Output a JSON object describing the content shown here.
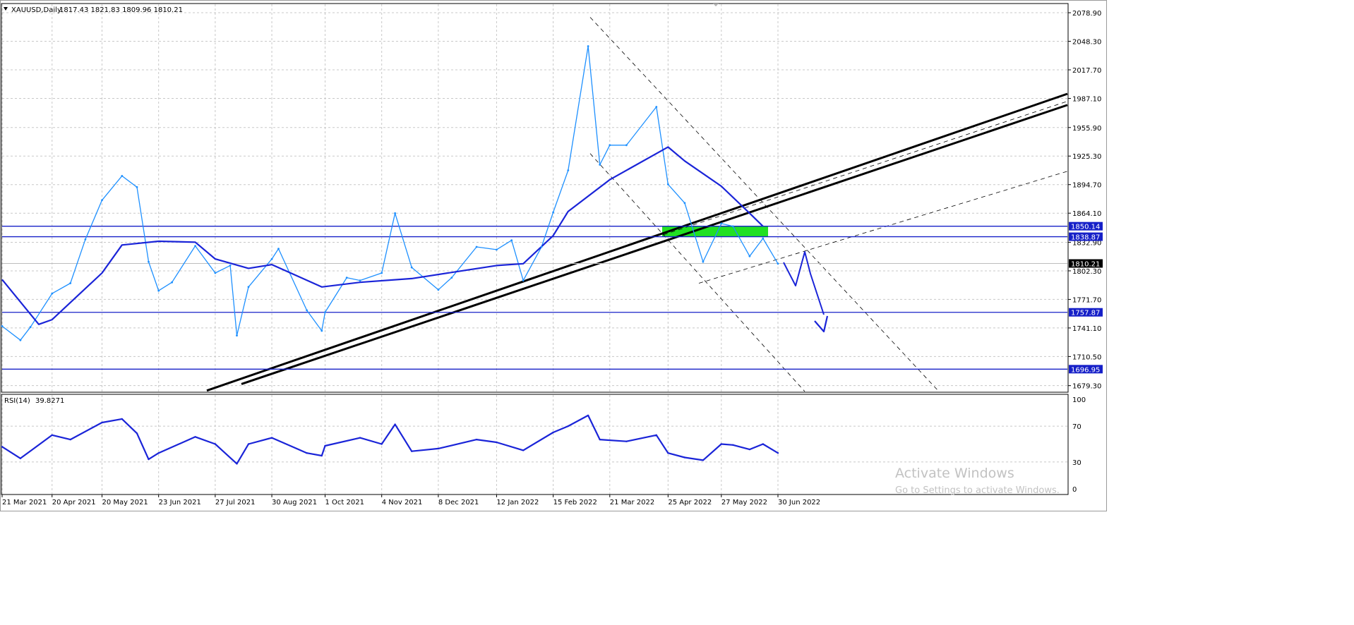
{
  "symbol_header": {
    "symbol": "XAUUSD,Daily",
    "ohlc": "1817.43 1821.83 1809.96 1810.21"
  },
  "indicator_header": {
    "name": "RSI(14)",
    "value": "39.8271"
  },
  "watermark": {
    "line1": "Activate Windows",
    "line2": "Go to Settings to activate Windows."
  },
  "colors": {
    "price_line": "#1e90ff",
    "ma_line": "#1a24d8",
    "level_line": "#1620c8",
    "trend_line": "#000000",
    "zone_fill": "#22e022",
    "grid": "#c8c8c8",
    "bull_candle": "#2aa8e8",
    "bear_candle": "#e01818"
  },
  "chart_data": [
    {
      "type": "line",
      "title": "XAUUSD,Daily",
      "x": [
        "21 Mar 2021",
        "20 Apr 2021",
        "20 May 2021",
        "23 Jun 2021",
        "27 Jul 2021",
        "30 Aug 2021",
        "1 Oct 2021",
        "4 Nov 2021",
        "8 Dec 2021",
        "12 Jan 2022",
        "15 Feb 2022",
        "21 Mar 2022",
        "25 Apr 2022",
        "27 May 2022",
        "30 Jun 2022"
      ],
      "y_ticks": [
        "2078.90",
        "2048.30",
        "2017.70",
        "1987.10",
        "1955.90",
        "1925.30",
        "1894.70",
        "1864.10",
        "1832.90",
        "1802.30",
        "1771.70",
        "1741.10",
        "1710.50",
        "1679.30"
      ],
      "ylim": [
        1673,
        2088
      ],
      "horizontal_levels": [
        "1850.14",
        "1838.87",
        "1757.87",
        "1696.95"
      ],
      "last_price_label": "1810.21",
      "series": [
        {
          "name": "XAUUSD,Daily",
          "points": [
            [
              "21 Mar 2021",
              1743
            ],
            [
              "1 Apr 2021",
              1728
            ],
            [
              "7 Apr 2021",
              1742
            ],
            [
              "20 Apr 2021",
              1778
            ],
            [
              "1 May 2021",
              1789
            ],
            [
              "10 May 2021",
              1836
            ],
            [
              "20 May 2021",
              1878
            ],
            [
              "1 Jun 2021",
              1904
            ],
            [
              "10 Jun 2021",
              1892
            ],
            [
              "17 Jun 2021",
              1812
            ],
            [
              "23 Jun 2021",
              1781
            ],
            [
              "1 Jul 2021",
              1790
            ],
            [
              "15 Jul 2021",
              1829
            ],
            [
              "27 Jul 2021",
              1800
            ],
            [
              "5 Aug 2021",
              1808
            ],
            [
              "9 Aug 2021",
              1733
            ],
            [
              "16 Aug 2021",
              1785
            ],
            [
              "30 Aug 2021",
              1815
            ],
            [
              "3 Sep 2021",
              1826
            ],
            [
              "20 Sep 2021",
              1760
            ],
            [
              "29 Sep 2021",
              1738
            ],
            [
              "1 Oct 2021",
              1758
            ],
            [
              "14 Oct 2021",
              1795
            ],
            [
              "22 Oct 2021",
              1792
            ],
            [
              "4 Nov 2021",
              1800
            ],
            [
              "12 Nov 2021",
              1864
            ],
            [
              "22 Nov 2021",
              1806
            ],
            [
              "8 Dec 2021",
              1782
            ],
            [
              "16 Dec 2021",
              1795
            ],
            [
              "31 Dec 2021",
              1828
            ],
            [
              "12 Jan 2022",
              1825
            ],
            [
              "21 Jan 2022",
              1835
            ],
            [
              "28 Jan 2022",
              1792
            ],
            [
              "8 Feb 2022",
              1828
            ],
            [
              "15 Feb 2022",
              1865
            ],
            [
              "24 Feb 2022",
              1910
            ],
            [
              "8 Mar 2022",
              2043
            ],
            [
              "15 Mar 2022",
              1916
            ],
            [
              "21 Mar 2022",
              1937
            ],
            [
              "31 Mar 2022",
              1937
            ],
            [
              "18 Apr 2022",
              1978
            ],
            [
              "25 Apr 2022",
              1895
            ],
            [
              "5 May 2022",
              1875
            ],
            [
              "16 May 2022",
              1812
            ],
            [
              "27 May 2022",
              1853
            ],
            [
              "3 Jun 2022",
              1850
            ],
            [
              "13 Jun 2022",
              1818
            ],
            [
              "21 Jun 2022",
              1837
            ],
            [
              "30 Jun 2022",
              1810
            ]
          ]
        },
        {
          "name": "MA",
          "points": [
            [
              "21 Mar 2021",
              1793
            ],
            [
              "12 Apr 2021",
              1745
            ],
            [
              "20 Apr 2021",
              1750
            ],
            [
              "20 May 2021",
              1800
            ],
            [
              "1 Jun 2021",
              1830
            ],
            [
              "23 Jun 2021",
              1834
            ],
            [
              "15 Jul 2021",
              1833
            ],
            [
              "27 Jul 2021",
              1815
            ],
            [
              "16 Aug 2021",
              1805
            ],
            [
              "30 Aug 2021",
              1809
            ],
            [
              "29 Sep 2021",
              1785
            ],
            [
              "22 Oct 2021",
              1790
            ],
            [
              "22 Nov 2021",
              1794
            ],
            [
              "12 Jan 2022",
              1808
            ],
            [
              "28 Jan 2022",
              1810
            ],
            [
              "15 Feb 2022",
              1840
            ],
            [
              "24 Feb 2022",
              1866
            ],
            [
              "21 Mar 2022",
              1900
            ],
            [
              "25 Apr 2022",
              1935
            ],
            [
              "5 May 2022",
              1920
            ],
            [
              "27 May 2022",
              1893
            ],
            [
              "13 Jun 2022",
              1864
            ],
            [
              "21 Jun 2022",
              1850
            ]
          ]
        }
      ]
    },
    {
      "type": "line",
      "title": "RSI(14) 39.8271",
      "x": [
        "21 Mar 2021",
        "20 Apr 2021",
        "20 May 2021",
        "23 Jun 2021",
        "27 Jul 2021",
        "30 Aug 2021",
        "1 Oct 2021",
        "4 Nov 2021",
        "8 Dec 2021",
        "12 Jan 2022",
        "15 Feb 2022",
        "21 Mar 2022",
        "25 Apr 2022",
        "27 May 2022",
        "30 Jun 2022"
      ],
      "y_ticks": [
        "100",
        "70",
        "30",
        "0"
      ],
      "ylim": [
        0,
        100
      ],
      "series": [
        {
          "name": "RSI(14)",
          "points": [
            [
              "21 Mar 2021",
              47
            ],
            [
              "1 Apr 2021",
              34
            ],
            [
              "20 Apr 2021",
              60
            ],
            [
              "1 May 2021",
              55
            ],
            [
              "20 May 2021",
              74
            ],
            [
              "1 Jun 2021",
              78
            ],
            [
              "10 Jun 2021",
              62
            ],
            [
              "17 Jun 2021",
              33
            ],
            [
              "23 Jun 2021",
              40
            ],
            [
              "15 Jul 2021",
              58
            ],
            [
              "27 Jul 2021",
              50
            ],
            [
              "9 Aug 2021",
              28
            ],
            [
              "16 Aug 2021",
              50
            ],
            [
              "30 Aug 2021",
              57
            ],
            [
              "20 Sep 2021",
              40
            ],
            [
              "29 Sep 2021",
              37
            ],
            [
              "1 Oct 2021",
              48
            ],
            [
              "22 Oct 2021",
              57
            ],
            [
              "4 Nov 2021",
              50
            ],
            [
              "12 Nov 2021",
              72
            ],
            [
              "22 Nov 2021",
              42
            ],
            [
              "8 Dec 2021",
              45
            ],
            [
              "31 Dec 2021",
              55
            ],
            [
              "12 Jan 2022",
              52
            ],
            [
              "28 Jan 2022",
              43
            ],
            [
              "15 Feb 2022",
              63
            ],
            [
              "24 Feb 2022",
              70
            ],
            [
              "8 Mar 2022",
              82
            ],
            [
              "15 Mar 2022",
              55
            ],
            [
              "31 Mar 2022",
              53
            ],
            [
              "18 Apr 2022",
              60
            ],
            [
              "25 Apr 2022",
              40
            ],
            [
              "5 May 2022",
              35
            ],
            [
              "16 May 2022",
              32
            ],
            [
              "27 May 2022",
              50
            ],
            [
              "3 Jun 2022",
              49
            ],
            [
              "13 Jun 2022",
              44
            ],
            [
              "21 Jun 2022",
              50
            ],
            [
              "30 Jun 2022",
              40
            ]
          ]
        }
      ]
    }
  ]
}
